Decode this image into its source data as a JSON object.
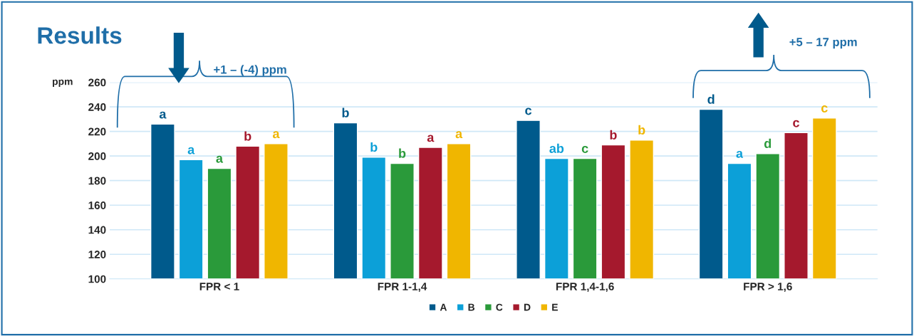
{
  "chart_data": {
    "type": "bar",
    "title": "Results",
    "ylabel": "ppm",
    "categories": [
      "FPR < 1",
      "FPR 1-1,4",
      "FPR 1,4-1,6",
      "FPR > 1,6"
    ],
    "series": [
      {
        "name": "A",
        "color": "#005a8c",
        "values": [
          226,
          227,
          229,
          238
        ],
        "value_labels": [
          "a",
          "b",
          "c",
          "d"
        ]
      },
      {
        "name": "B",
        "color": "#0ca0d8",
        "values": [
          197,
          199,
          198,
          194
        ],
        "value_labels": [
          "a",
          "b",
          "ab",
          "a"
        ]
      },
      {
        "name": "C",
        "color": "#2a9a3a",
        "values": [
          190,
          194,
          198,
          202
        ],
        "value_labels": [
          "a",
          "b",
          "c",
          "d"
        ]
      },
      {
        "name": "D",
        "color": "#a5192d",
        "values": [
          208,
          207,
          209,
          219
        ],
        "value_labels": [
          "b",
          "a",
          "b",
          "c"
        ]
      },
      {
        "name": "E",
        "color": "#f0b600",
        "values": [
          210,
          210,
          213,
          231
        ],
        "value_labels": [
          "a",
          "a",
          "b",
          "c"
        ]
      }
    ],
    "ylim": [
      100,
      260
    ],
    "yticks": [
      100,
      120,
      140,
      160,
      180,
      200,
      220,
      240,
      260
    ],
    "grid": "y",
    "legend": "bottom",
    "annotations": [
      "+1 – (-4) ppm",
      "+5 – 17 ppm"
    ]
  }
}
